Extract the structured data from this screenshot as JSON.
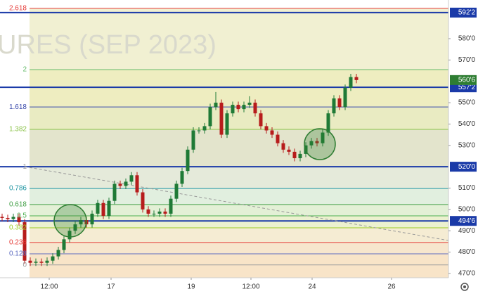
{
  "chart_data": {
    "type": "candlestick",
    "watermark": "URES (SEP 2023)",
    "xlim": [
      -0.375,
      79.375
    ],
    "xticks": [
      {
        "value": 8.375,
        "label": "12:00"
      },
      {
        "value": 19.375,
        "label": "17"
      },
      {
        "value": 33.625,
        "label": "19"
      },
      {
        "value": 44.25,
        "label": "12:00"
      },
      {
        "value": 55.125,
        "label": "24"
      },
      {
        "value": 69.25,
        "label": "26"
      }
    ],
    "ylim": [
      468,
      598.1
    ],
    "yticks": [
      {
        "value": 470,
        "label": "470'0"
      },
      {
        "value": 480,
        "label": "480'0"
      },
      {
        "value": 490,
        "label": "490'0"
      },
      {
        "value": 500,
        "label": "500'0"
      },
      {
        "value": 510,
        "label": "510'0"
      },
      {
        "value": 530,
        "label": "530'0"
      },
      {
        "value": 540,
        "label": "540'0"
      },
      {
        "value": 550,
        "label": "550'0"
      },
      {
        "value": 570,
        "label": "570'0"
      },
      {
        "value": 580,
        "label": "580'0"
      }
    ],
    "up_color": "#1f7a36",
    "down_color": "#b71c1c",
    "open": [
      496.5,
      496,
      495.5,
      496.5,
      494,
      476,
      475,
      475.5,
      475,
      476,
      478,
      481,
      486,
      490,
      493,
      495,
      493,
      498,
      503,
      497,
      504,
      512,
      511,
      513,
      516,
      508,
      500,
      498,
      498,
      499,
      498,
      505,
      512,
      518,
      528,
      537,
      537,
      539,
      548,
      550,
      535,
      545,
      549,
      547,
      549,
      550,
      545,
      539,
      537,
      535,
      531,
      528,
      527,
      524,
      526,
      530,
      532,
      531,
      536,
      545,
      552,
      548,
      557,
      562
    ],
    "high": [
      498,
      497.5,
      498,
      498,
      495.5,
      477.5,
      477,
      477,
      477.5,
      479.5,
      482.5,
      487.5,
      491.5,
      494.5,
      496.5,
      496.5,
      499.5,
      504.5,
      504.5,
      505.5,
      513.5,
      513.5,
      514.5,
      517.5,
      517.5,
      509.5,
      501.5,
      499.5,
      500.5,
      500.5,
      506.5,
      513.5,
      519.5,
      529.5,
      538.5,
      538.5,
      540.5,
      549.5,
      555,
      551.5,
      546.5,
      550.5,
      550.5,
      550.5,
      553,
      551.5,
      546.5,
      540.5,
      538.5,
      536.5,
      532.5,
      529.5,
      528.5,
      527.5,
      531.5,
      533.5,
      533.5,
      537.5,
      546.5,
      553.5,
      553.5,
      558.5,
      563.5,
      563.5
    ],
    "low": [
      494.5,
      494,
      494,
      492.5,
      474.5,
      473.5,
      473.5,
      473.5,
      473.5,
      474.5,
      476.5,
      479.5,
      484.5,
      488.5,
      491.5,
      491.5,
      491.5,
      496.5,
      495.5,
      495.5,
      502.5,
      509.5,
      509.5,
      511.5,
      506.5,
      498.5,
      496.5,
      496.5,
      496.5,
      496.5,
      496.5,
      503.5,
      510.5,
      516.5,
      526.5,
      535.5,
      535.5,
      537.5,
      546.5,
      533.5,
      533.5,
      543.5,
      545.5,
      545.5,
      547.5,
      543.5,
      537.5,
      535.5,
      533.5,
      529.5,
      526.5,
      525.5,
      522.5,
      522.5,
      524.5,
      528.5,
      529.5,
      529.5,
      534.5,
      543.5,
      546.5,
      546.5,
      555.5,
      559.1
    ],
    "close": [
      496,
      495.5,
      496.5,
      494,
      476,
      475,
      475.5,
      475,
      476,
      478,
      481,
      486,
      490,
      493,
      495,
      493,
      498,
      503,
      497,
      504,
      512,
      511,
      513,
      516,
      508,
      500,
      498,
      498,
      499,
      498,
      505,
      512,
      518,
      528,
      537,
      537,
      539,
      548,
      550,
      535,
      545,
      549,
      547,
      549,
      550,
      545,
      539,
      537,
      535,
      531,
      528,
      527,
      524,
      526,
      530,
      532,
      531,
      536,
      545,
      552,
      548,
      557,
      562,
      560.6
    ],
    "fib_levels": [
      {
        "ratio": 2.618,
        "price": 594.2,
        "color": "#e53935",
        "fill": "#f1f0d2"
      },
      {
        "ratio": 2,
        "price": 565.5,
        "color": "#66bb6a",
        "fill": "#eeedc0"
      },
      {
        "ratio": 1.618,
        "price": 548,
        "color": "#3949ab",
        "fill": "#e9ebc2"
      },
      {
        "ratio": 1.382,
        "price": 537.5,
        "color": "#8bc34a",
        "fill": "#e3e4cc"
      },
      {
        "ratio": 1,
        "price": 520,
        "color": "#9e9e9e",
        "fill": "#e5eada"
      },
      {
        "ratio": 0.786,
        "price": 509.8,
        "color": "#2196a3",
        "fill": "#e1efdf"
      },
      {
        "ratio": 0.618,
        "price": 502.3,
        "color": "#43a047",
        "fill": "#e3f0d6"
      },
      {
        "ratio": 0.5,
        "price": 497,
        "color": "#4caf50",
        "fill": "#ecf1cf"
      },
      {
        "ratio": 0.382,
        "price": 491.4,
        "color": "#9ccc20",
        "fill": "#f5ecd3"
      },
      {
        "ratio": 0.236,
        "price": 484.5,
        "color": "#e53935",
        "fill": "#f7e6cd"
      },
      {
        "ratio": 0.128,
        "price": 479.2,
        "color": "#5c6bc0",
        "fill": "#f8e4c8"
      },
      {
        "ratio": 0,
        "price": 474,
        "color": "#9e9e9e",
        "fill": "#f8e4c8"
      }
    ],
    "price_lines": [
      {
        "value": 592.2,
        "label": "592'2",
        "color": "#1a3aa8"
      },
      {
        "value": 557.2,
        "label": "557'2",
        "color": "#1a3aa8"
      },
      {
        "value": 520,
        "label": "520'0",
        "color": "#1a3aa8"
      },
      {
        "value": 494.6,
        "label": "494'6",
        "color": "#1a3aa8"
      }
    ],
    "last_price": {
      "value": 560.6,
      "label": "560'6",
      "color": "#2e7d32"
    }
  }
}
